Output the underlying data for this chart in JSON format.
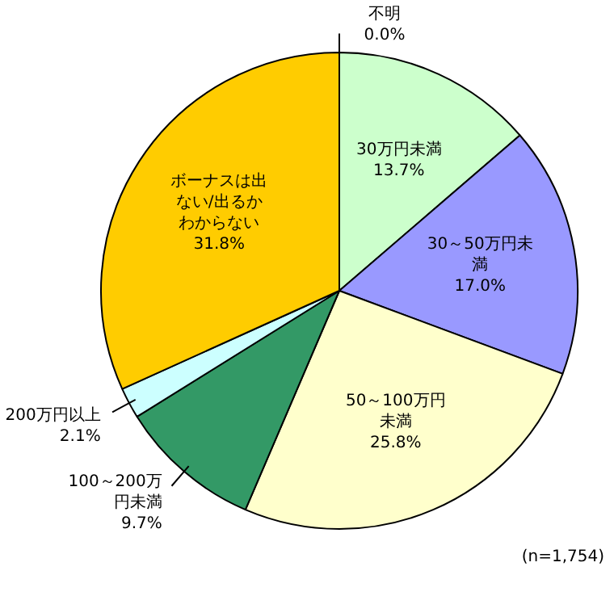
{
  "chart_data": {
    "type": "pie",
    "categories": [
      "不明",
      "30万円未満",
      "30～50万円未満",
      "50～100万円未満",
      "100～200万円未満",
      "200万円以上",
      "ボーナスは出ない/出るかわからない"
    ],
    "values": [
      0.0,
      13.7,
      17.0,
      25.8,
      9.7,
      2.1,
      31.8
    ],
    "colors": [
      "#ffffff",
      "#ccffcc",
      "#9999ff",
      "#ffffcc",
      "#339966",
      "#ccffff",
      "#ffcc00"
    ],
    "value_labels": [
      "0.0%",
      "13.7%",
      "17.0%",
      "25.8%",
      "9.7%",
      "2.1%",
      "31.8%"
    ],
    "annotations": [
      "(n=1,754)"
    ]
  }
}
